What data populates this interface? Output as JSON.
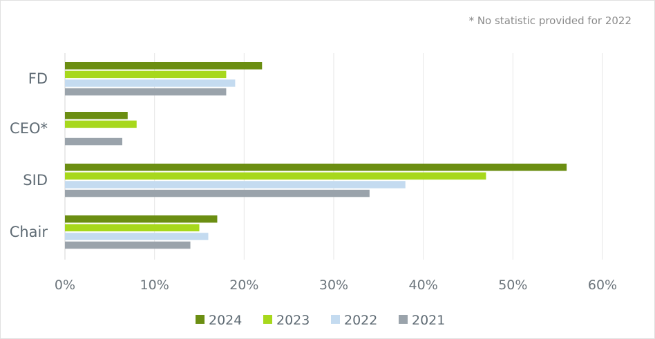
{
  "chart_data": {
    "type": "bar",
    "orientation": "horizontal",
    "title": "",
    "note": "* No statistic provided for 2022",
    "categories": [
      "FD",
      "CEO*",
      "SID",
      "Chair"
    ],
    "series": [
      {
        "name": "2024",
        "color": "#6b8e12",
        "values": [
          22,
          7,
          56,
          17
        ]
      },
      {
        "name": "2023",
        "color": "#a7d81c",
        "values": [
          18,
          8,
          47,
          15
        ]
      },
      {
        "name": "2022",
        "color": "#c4dbf0",
        "values": [
          19,
          null,
          38,
          16
        ]
      },
      {
        "name": "2021",
        "color": "#9aa3ab",
        "values": [
          18,
          6.4,
          34,
          14
        ]
      }
    ],
    "xlim": [
      0,
      60
    ],
    "xticks": [
      0,
      10,
      20,
      30,
      40,
      50,
      60
    ],
    "xtick_labels": [
      "0%",
      "10%",
      "20%",
      "30%",
      "40%",
      "50%",
      "60%"
    ],
    "xlabel": "",
    "ylabel": "",
    "grid": true,
    "legend_position": "bottom"
  }
}
